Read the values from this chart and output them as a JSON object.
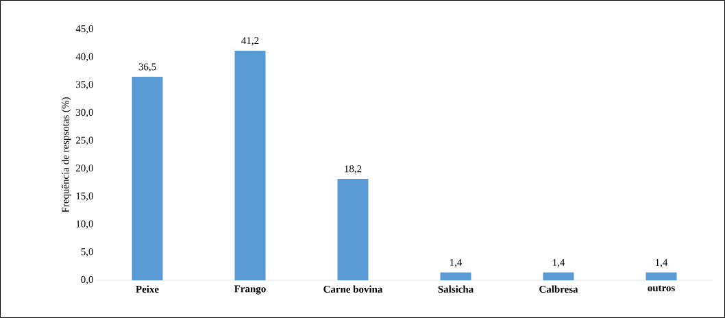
{
  "chart_data": {
    "type": "bar",
    "ylabel": "Frequência de respsotas (%)",
    "categories": [
      "Peixe",
      "Frango",
      "Carne bovina",
      "Salsicha",
      "Calbresa",
      "outros"
    ],
    "values": [
      36.5,
      41.2,
      18.2,
      1.4,
      1.4,
      1.4
    ],
    "value_labels": [
      "36,5",
      "41,2",
      "18,2",
      "1,4",
      "1,4",
      "1,4"
    ],
    "color": "#5b9bd5",
    "ylim": [
      0,
      45
    ],
    "yticks": [
      {
        "value": 0,
        "label": "0,0"
      },
      {
        "value": 5,
        "label": "5,0"
      },
      {
        "value": 10,
        "label": "10,0"
      },
      {
        "value": 15,
        "label": "15,0"
      },
      {
        "value": 20,
        "label": "20,0"
      },
      {
        "value": 25,
        "label": "25,0"
      },
      {
        "value": 30,
        "label": "30,0"
      },
      {
        "value": 35,
        "label": "35,0"
      },
      {
        "value": 40,
        "label": "40,0"
      },
      {
        "value": 45,
        "label": "45,0"
      }
    ]
  }
}
